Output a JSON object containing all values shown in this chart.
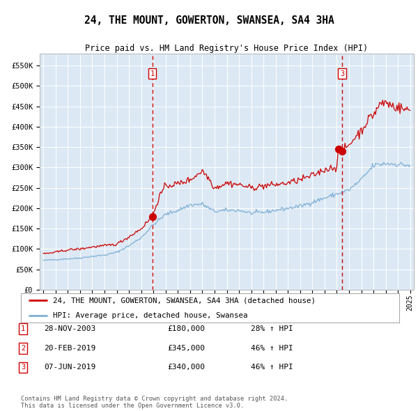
{
  "title": "24, THE MOUNT, GOWERTON, SWANSEA, SA4 3HA",
  "subtitle": "Price paid vs. HM Land Registry's House Price Index (HPI)",
  "bg_color": "#dce9f5",
  "hpi_color": "#7fafd4",
  "price_color": "#cc0000",
  "dashed_line_color": "#cc0000",
  "ylim": [
    0,
    580000
  ],
  "yticks": [
    0,
    50000,
    100000,
    150000,
    200000,
    250000,
    300000,
    350000,
    400000,
    450000,
    500000,
    550000
  ],
  "ytick_labels": [
    "£0",
    "£50K",
    "£100K",
    "£150K",
    "£200K",
    "£250K",
    "£300K",
    "£350K",
    "£400K",
    "£450K",
    "£500K",
    "£550K"
  ],
  "xmin_year": 1995,
  "xmax_year": 2025,
  "xtick_years": [
    1995,
    1996,
    1997,
    1998,
    1999,
    2000,
    2001,
    2002,
    2003,
    2004,
    2005,
    2006,
    2007,
    2008,
    2009,
    2010,
    2011,
    2012,
    2013,
    2014,
    2015,
    2016,
    2017,
    2018,
    2019,
    2020,
    2021,
    2022,
    2023,
    2024,
    2025
  ],
  "transaction1": {
    "date_num": 2003.91,
    "price": 180000,
    "label": "1"
  },
  "transaction2": {
    "date_num": 2019.12,
    "price": 345000,
    "label": "2"
  },
  "transaction3": {
    "date_num": 2019.44,
    "price": 340000,
    "label": "3"
  },
  "vline1_x": 2003.91,
  "vline3_x": 2019.44,
  "legend_line1": "24, THE MOUNT, GOWERTON, SWANSEA, SA4 3HA (detached house)",
  "legend_line2": "HPI: Average price, detached house, Swansea",
  "table_rows": [
    {
      "num": "1",
      "date": "28-NOV-2003",
      "price": "£180,000",
      "change": "28% ↑ HPI"
    },
    {
      "num": "2",
      "date": "20-FEB-2019",
      "price": "£345,000",
      "change": "46% ↑ HPI"
    },
    {
      "num": "3",
      "date": "07-JUN-2019",
      "price": "£340,000",
      "change": "46% ↑ HPI"
    }
  ],
  "footer": "Contains HM Land Registry data © Crown copyright and database right 2024.\nThis data is licensed under the Open Government Licence v3.0.",
  "hpi_anchors": [
    [
      1995.0,
      72000
    ],
    [
      1996.0,
      74000
    ],
    [
      1997.0,
      76000
    ],
    [
      1998.0,
      78000
    ],
    [
      1999.0,
      82000
    ],
    [
      2000.0,
      85000
    ],
    [
      2001.0,
      92000
    ],
    [
      2002.0,
      108000
    ],
    [
      2003.0,
      128000
    ],
    [
      2004.0,
      160000
    ],
    [
      2005.0,
      185000
    ],
    [
      2006.0,
      195000
    ],
    [
      2007.0,
      208000
    ],
    [
      2008.0,
      210000
    ],
    [
      2009.0,
      192000
    ],
    [
      2010.0,
      195000
    ],
    [
      2011.0,
      195000
    ],
    [
      2012.0,
      188000
    ],
    [
      2013.0,
      190000
    ],
    [
      2014.0,
      195000
    ],
    [
      2015.0,
      200000
    ],
    [
      2016.0,
      205000
    ],
    [
      2017.0,
      215000
    ],
    [
      2018.0,
      225000
    ],
    [
      2019.0,
      235000
    ],
    [
      2020.0,
      245000
    ],
    [
      2021.0,
      270000
    ],
    [
      2022.0,
      305000
    ],
    [
      2023.0,
      310000
    ],
    [
      2024.0,
      308000
    ],
    [
      2025.0,
      305000
    ]
  ],
  "price_anchors": [
    [
      1995.0,
      88000
    ],
    [
      1996.0,
      92000
    ],
    [
      1997.0,
      98000
    ],
    [
      1998.0,
      100000
    ],
    [
      1999.0,
      105000
    ],
    [
      2000.0,
      108000
    ],
    [
      2001.0,
      112000
    ],
    [
      2002.0,
      130000
    ],
    [
      2003.0,
      150000
    ],
    [
      2003.91,
      180000
    ],
    [
      2004.5,
      230000
    ],
    [
      2005.0,
      255000
    ],
    [
      2006.0,
      260000
    ],
    [
      2007.0,
      270000
    ],
    [
      2008.0,
      292000
    ],
    [
      2008.5,
      275000
    ],
    [
      2009.0,
      250000
    ],
    [
      2010.0,
      262000
    ],
    [
      2011.0,
      258000
    ],
    [
      2012.0,
      250000
    ],
    [
      2013.0,
      255000
    ],
    [
      2014.0,
      258000
    ],
    [
      2015.0,
      262000
    ],
    [
      2016.0,
      270000
    ],
    [
      2017.0,
      280000
    ],
    [
      2018.0,
      295000
    ],
    [
      2019.0,
      302000
    ],
    [
      2019.12,
      345000
    ],
    [
      2019.44,
      340000
    ],
    [
      2019.5,
      342000
    ],
    [
      2020.0,
      355000
    ],
    [
      2020.5,
      375000
    ],
    [
      2021.0,
      390000
    ],
    [
      2021.5,
      415000
    ],
    [
      2022.0,
      430000
    ],
    [
      2022.5,
      455000
    ],
    [
      2023.0,
      460000
    ],
    [
      2023.5,
      452000
    ],
    [
      2024.0,
      448000
    ],
    [
      2024.5,
      443000
    ],
    [
      2025.0,
      440000
    ]
  ]
}
